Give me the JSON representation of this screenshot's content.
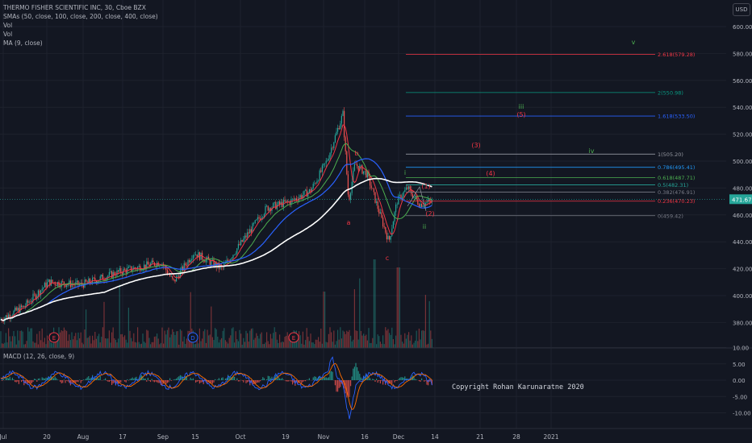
{
  "legend": {
    "symbol": "THERMO FISHER SCIENTIFIC INC, 30, Cboe BZX",
    "smas": "SMAs (50, close, 100, close, 200, close, 400, close)",
    "vol1": "Vol",
    "vol2": "Vol",
    "ma": "MA (9, close)"
  },
  "currency_button": "USD",
  "macd_label": "MACD (12, 26, close, 9)",
  "copyright": "Copyright Rohan Karunaratne 2020",
  "current_price": "471.67",
  "price_axis": {
    "ticks": [
      600,
      580,
      560,
      540,
      520,
      500,
      480,
      460,
      440,
      420,
      400,
      380
    ],
    "labels": [
      "600.00",
      "580.00",
      "560.00",
      "540.00",
      "520.00",
      "500.00",
      "480.00",
      "460.00",
      "440.00",
      "420.00",
      "400.00",
      "380.00"
    ]
  },
  "macd_axis": {
    "ticks": [
      10,
      5,
      0,
      -5,
      -10
    ],
    "labels": [
      "10.00",
      "5.00",
      "0.00",
      "-5.00",
      "-10.00"
    ]
  },
  "time_axis": [
    "Jul",
    "20",
    "Aug",
    "17",
    "Sep",
    "15",
    "Oct",
    "19",
    "Nov",
    "16",
    "Dec",
    "14",
    "21",
    "28",
    "2021"
  ],
  "fib_levels": [
    {
      "label": "2.618(579.28)",
      "price": 579.28,
      "color": "#f23645"
    },
    {
      "label": "2(550.98)",
      "price": 550.98,
      "color": "#089981"
    },
    {
      "label": "1.618(533.50)",
      "price": 533.5,
      "color": "#2962ff"
    },
    {
      "label": "1(505.20)",
      "price": 505.2,
      "color": "#9598a1"
    },
    {
      "label": "0.786(495.41)",
      "price": 495.41,
      "color": "#2196f3"
    },
    {
      "label": "0.618(487.71)",
      "price": 487.71,
      "color": "#4caf50"
    },
    {
      "label": "0.5(482.31)",
      "price": 482.31,
      "color": "#26a69a"
    },
    {
      "label": "0.382(476.91)",
      "price": 476.91,
      "color": "#787b86"
    },
    {
      "label": "0.236(470.23)",
      "price": 470.23,
      "color": "#f23645"
    },
    {
      "label": "0(459.42)",
      "price": 459.42,
      "color": "#787b86"
    }
  ],
  "wave_labels": [
    {
      "text": "v",
      "color": "#4caf50"
    },
    {
      "text": "iii",
      "color": "#4caf50"
    },
    {
      "text": "(5)",
      "color": "#f23645"
    },
    {
      "text": "(3)",
      "color": "#f23645"
    },
    {
      "text": "iv",
      "color": "#4caf50"
    },
    {
      "text": "(4)",
      "color": "#f23645"
    },
    {
      "text": "i",
      "color": "#4caf50"
    },
    {
      "text": "(1)",
      "color": "#f23645"
    },
    {
      "text": "(2)",
      "color": "#f23645"
    },
    {
      "text": "ii",
      "color": "#4caf50"
    },
    {
      "text": "b",
      "color": "#f23645"
    },
    {
      "text": "a",
      "color": "#f23645"
    },
    {
      "text": "c",
      "color": "#f23645"
    }
  ],
  "event_markers": [
    {
      "text": "E",
      "color": "#f23645"
    },
    {
      "text": "D",
      "color": "#2962ff"
    },
    {
      "text": "E",
      "color": "#f23645"
    }
  ],
  "colors": {
    "background": "#131722",
    "grid": "#1e222d",
    "up": "#26a69a",
    "down": "#ef5350",
    "sma50": "#4caf50",
    "sma100": "#2962ff",
    "sma200": "#ffffff",
    "ma9": "#f23645",
    "macd": "#2962ff",
    "signal": "#ff6d00"
  }
}
